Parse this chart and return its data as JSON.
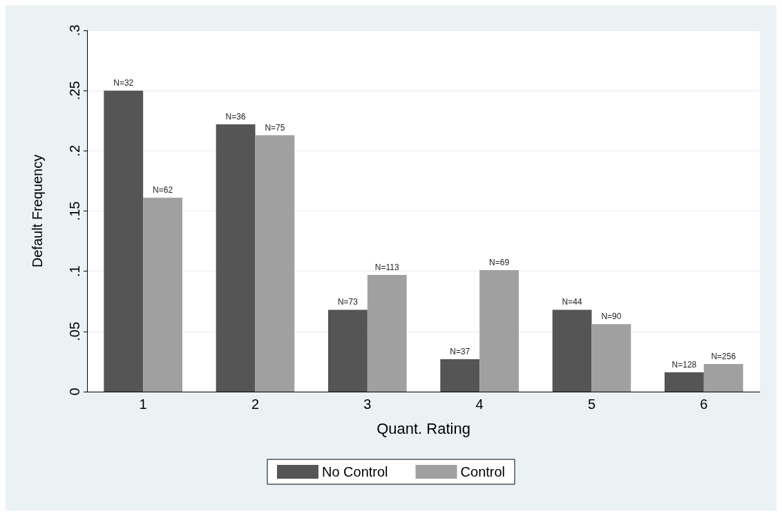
{
  "chart_data": {
    "type": "bar",
    "xlabel": "Quant. Rating",
    "ylabel": "Default Frequency",
    "categories": [
      "1",
      "2",
      "3",
      "4",
      "5",
      "6"
    ],
    "series": [
      {
        "name": "No Control",
        "color": "#555555",
        "values": [
          0.25,
          0.222,
          0.068,
          0.027,
          0.068,
          0.016
        ]
      },
      {
        "name": "Control",
        "color": "#a0a0a0",
        "values": [
          0.161,
          0.213,
          0.097,
          0.101,
          0.056,
          0.023
        ]
      }
    ],
    "annotations": [
      {
        "text": "N=32",
        "x": "1",
        "y": 0.25
      },
      {
        "text": "N=62",
        "x": "1",
        "y": 0.161
      },
      {
        "text": "N=36",
        "x": "2",
        "y": 0.222
      },
      {
        "text": "N=75",
        "x": "2",
        "y": 0.213
      },
      {
        "text": "N=73",
        "x": "3",
        "y": 0.068
      },
      {
        "text": "N=113",
        "x": "3",
        "y": 0.097
      },
      {
        "text": "N=37",
        "x": "4",
        "y": 0.027
      },
      {
        "text": "N=69",
        "x": "4",
        "y": 0.101
      },
      {
        "text": "N=44",
        "x": "5",
        "y": 0.068
      },
      {
        "text": "N=90",
        "x": "5",
        "y": 0.056
      },
      {
        "text": "N=128",
        "x": "6",
        "y": 0.016
      },
      {
        "text": "N=256",
        "x": "6",
        "y": 0.023
      }
    ],
    "ylim": [
      0,
      0.3
    ],
    "yticks": [
      {
        "value": 0,
        "label": "0"
      },
      {
        "value": 0.05,
        "label": ".05"
      },
      {
        "value": 0.1,
        "label": ".1"
      },
      {
        "value": 0.15,
        "label": ".15"
      },
      {
        "value": 0.2,
        "label": ".2"
      },
      {
        "value": 0.25,
        "label": ".25"
      },
      {
        "value": 0.3,
        "label": ".3"
      }
    ],
    "grid": "y",
    "legend": "bottom"
  }
}
